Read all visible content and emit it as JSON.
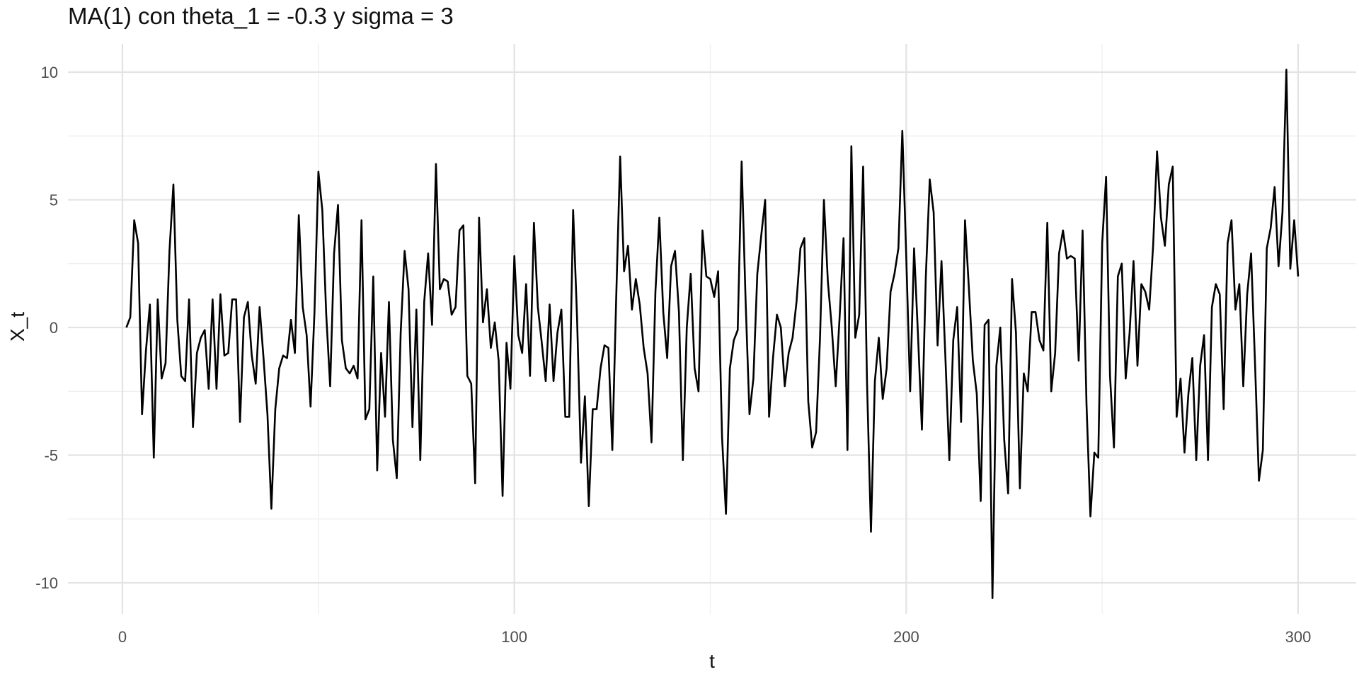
{
  "chart_data": {
    "type": "line",
    "title": "MA(1) con theta_1 = -0.3 y sigma = 3",
    "xlabel": "t",
    "ylabel": "X_t",
    "xlim": [
      -5,
      315
    ],
    "ylim": [
      -11,
      11
    ],
    "grid": true,
    "x_ticks": [
      0,
      100,
      200,
      300
    ],
    "x_tick_labels": [
      "0",
      "100",
      "200",
      "300"
    ],
    "x_minor_ticks": [
      50,
      150,
      250
    ],
    "y_ticks": [
      -10,
      -5,
      0,
      5,
      10
    ],
    "y_tick_labels": [
      "-10",
      "-5",
      "0",
      "5",
      "10"
    ],
    "y_minor_ticks": [
      -7.5,
      -2.5,
      2.5,
      7.5
    ],
    "series": [
      {
        "color": "#000000",
        "x_start": 1,
        "values": [
          0.0,
          0.4,
          4.2,
          3.3,
          -3.4,
          -0.9,
          0.9,
          -5.1,
          1.1,
          -2.0,
          -1.4,
          3.0,
          5.6,
          0.3,
          -1.9,
          -2.1,
          1.1,
          -3.9,
          -1.0,
          -0.4,
          -0.1,
          -2.4,
          1.1,
          -2.4,
          1.3,
          -1.1,
          -1.0,
          1.1,
          1.1,
          -3.7,
          0.4,
          1.0,
          -1.1,
          -2.2,
          0.8,
          -1.2,
          -3.4,
          -7.1,
          -3.2,
          -1.6,
          -1.1,
          -1.2,
          0.3,
          -1.0,
          4.4,
          0.8,
          -0.3,
          -3.1,
          0.6,
          6.1,
          4.6,
          0.5,
          -2.3,
          2.9,
          4.8,
          -0.5,
          -1.6,
          -1.8,
          -1.5,
          -2.0,
          4.2,
          -3.6,
          -3.2,
          2.0,
          -5.6,
          -1.0,
          -3.5,
          1.0,
          -4.4,
          -5.9,
          -0.2,
          3.0,
          1.5,
          -3.9,
          0.7,
          -5.2,
          1.0,
          2.9,
          0.1,
          6.4,
          1.5,
          1.9,
          1.8,
          0.5,
          0.8,
          3.8,
          4.0,
          -1.9,
          -2.2,
          -6.1,
          4.3,
          0.2,
          1.5,
          -0.8,
          0.2,
          -1.3,
          -6.6,
          -0.6,
          -2.4,
          2.8,
          -0.3,
          -1.0,
          1.7,
          -1.9,
          4.1,
          0.8,
          -0.6,
          -2.1,
          0.9,
          -2.1,
          -0.2,
          0.7,
          -3.5,
          -3.5,
          4.6,
          0.4,
          -5.3,
          -2.7,
          -7.0,
          -3.2,
          -3.2,
          -1.6,
          -0.7,
          -0.8,
          -4.8,
          1.2,
          6.7,
          2.2,
          3.2,
          0.7,
          1.9,
          0.9,
          -0.8,
          -1.8,
          -4.5,
          1.4,
          4.3,
          0.6,
          -1.2,
          2.4,
          3.0,
          0.6,
          -5.2,
          0.0,
          2.1,
          -1.6,
          -2.5,
          3.8,
          2.0,
          1.9,
          1.2,
          2.2,
          -4.3,
          -7.3,
          -1.6,
          -0.5,
          -0.1,
          6.5,
          1.1,
          -3.4,
          -2.0,
          2.1,
          3.6,
          5.0,
          -3.5,
          -1.2,
          0.5,
          0.0,
          -2.3,
          -1.0,
          -0.4,
          1.0,
          3.1,
          3.5,
          -2.9,
          -4.7,
          -4.1,
          -0.4,
          5.0,
          1.8,
          0.0,
          -2.3,
          0.4,
          3.5,
          -4.8,
          7.1,
          -0.4,
          0.5,
          6.3,
          -2.2,
          -8.0,
          -2.1,
          -0.4,
          -2.8,
          -1.6,
          1.4,
          2.1,
          3.1,
          7.7,
          2.8,
          -2.5,
          3.1,
          -0.3,
          -4.0,
          2.0,
          5.8,
          4.5,
          -0.7,
          2.6,
          -1.2,
          -5.2,
          -0.5,
          0.8,
          -3.7,
          4.2,
          1.5,
          -1.3,
          -2.6,
          -6.8,
          0.1,
          0.3,
          -10.6,
          -1.5,
          0.0,
          -4.4,
          -6.5,
          1.9,
          -0.2,
          -6.3,
          -1.8,
          -2.5,
          0.6,
          0.6,
          -0.5,
          -0.9,
          4.1,
          -2.5,
          -1.0,
          2.9,
          3.8,
          2.7,
          2.8,
          2.7,
          -1.3,
          3.8,
          -3.0,
          -7.4,
          -4.9,
          -5.1,
          3.3,
          5.9,
          -1.9,
          -4.7,
          2.0,
          2.5,
          -2.0,
          -0.2,
          2.6,
          -1.5,
          1.7,
          1.4,
          0.7,
          3.2,
          6.9,
          4.3,
          3.2,
          5.6,
          6.3,
          -3.5,
          -2.0,
          -4.9,
          -2.6,
          -1.2,
          -5.2,
          -1.5,
          -0.3,
          -5.2,
          0.8,
          1.7,
          1.3,
          -3.2,
          3.3,
          4.2,
          0.7,
          1.7,
          -2.3,
          1.3,
          2.9,
          -1.4,
          -6.0,
          -4.8,
          3.1,
          3.9,
          5.5,
          2.4,
          4.5,
          10.1,
          2.3,
          4.2,
          2.0
        ]
      }
    ]
  }
}
